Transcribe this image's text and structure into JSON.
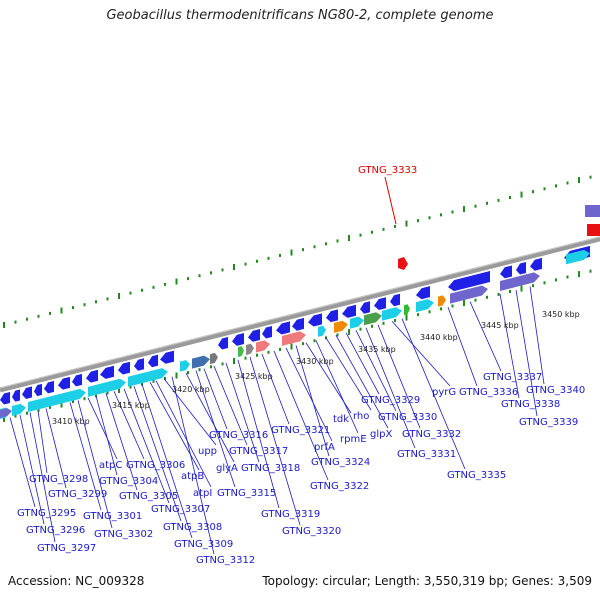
{
  "title": "Geobacillus thermodenitrificans NG80-2, complete genome",
  "accession": "Accession: NC_009328",
  "summary": "Topology: circular; Length: 3,550,319 bp; Genes: 3,509",
  "highlight_gene": "GTNG_3333",
  "colors": {
    "gene_arrow": "#1f1fe6",
    "cds_cyan": "#1ccfe6",
    "cds_purple": "#6e66cc",
    "rna_red": "#e81010",
    "highlight": "#e00000",
    "label": "#1a1acc",
    "tick_green": "#228822",
    "backbone": "#888888"
  },
  "kbp_markers": [
    "3410 kbp",
    "3415 kbp",
    "3420 kbp",
    "3425 kbp",
    "3430 kbp",
    "3435 kbp",
    "3440 kbp",
    "3445 kbp",
    "3450 kbp"
  ],
  "gene_labels": [
    "GTNG_3295",
    "GTNG_3296",
    "GTNG_3297",
    "GTNG_3298",
    "GTNG_3299",
    "GTNG_3301",
    "GTNG_3302",
    "atpC",
    "GTNG_3304",
    "GTNG_3305",
    "GTNG_3306",
    "GTNG_3307",
    "GTNG_3308",
    "GTNG_3309",
    "atpB",
    "atpI",
    "upp",
    "GTNG_3312",
    "glyA",
    "GTNG_3315",
    "GTNG_3316",
    "GTNG_3317",
    "GTNG_3318",
    "GTNG_3319",
    "GTNG_3320",
    "GTNG_3321",
    "GTNG_3322",
    "prfA",
    "GTNG_3324",
    "tdk",
    "rpmE",
    "rho",
    "glpX",
    "GTNG_3329",
    "GTNG_3330",
    "GTNG_3331",
    "GTNG_3332",
    "pyrG",
    "GTNG_3335",
    "GTNG_3336",
    "GTNG_3337",
    "GTNG_3338",
    "GTNG_3339",
    "GTNG_3340"
  ]
}
